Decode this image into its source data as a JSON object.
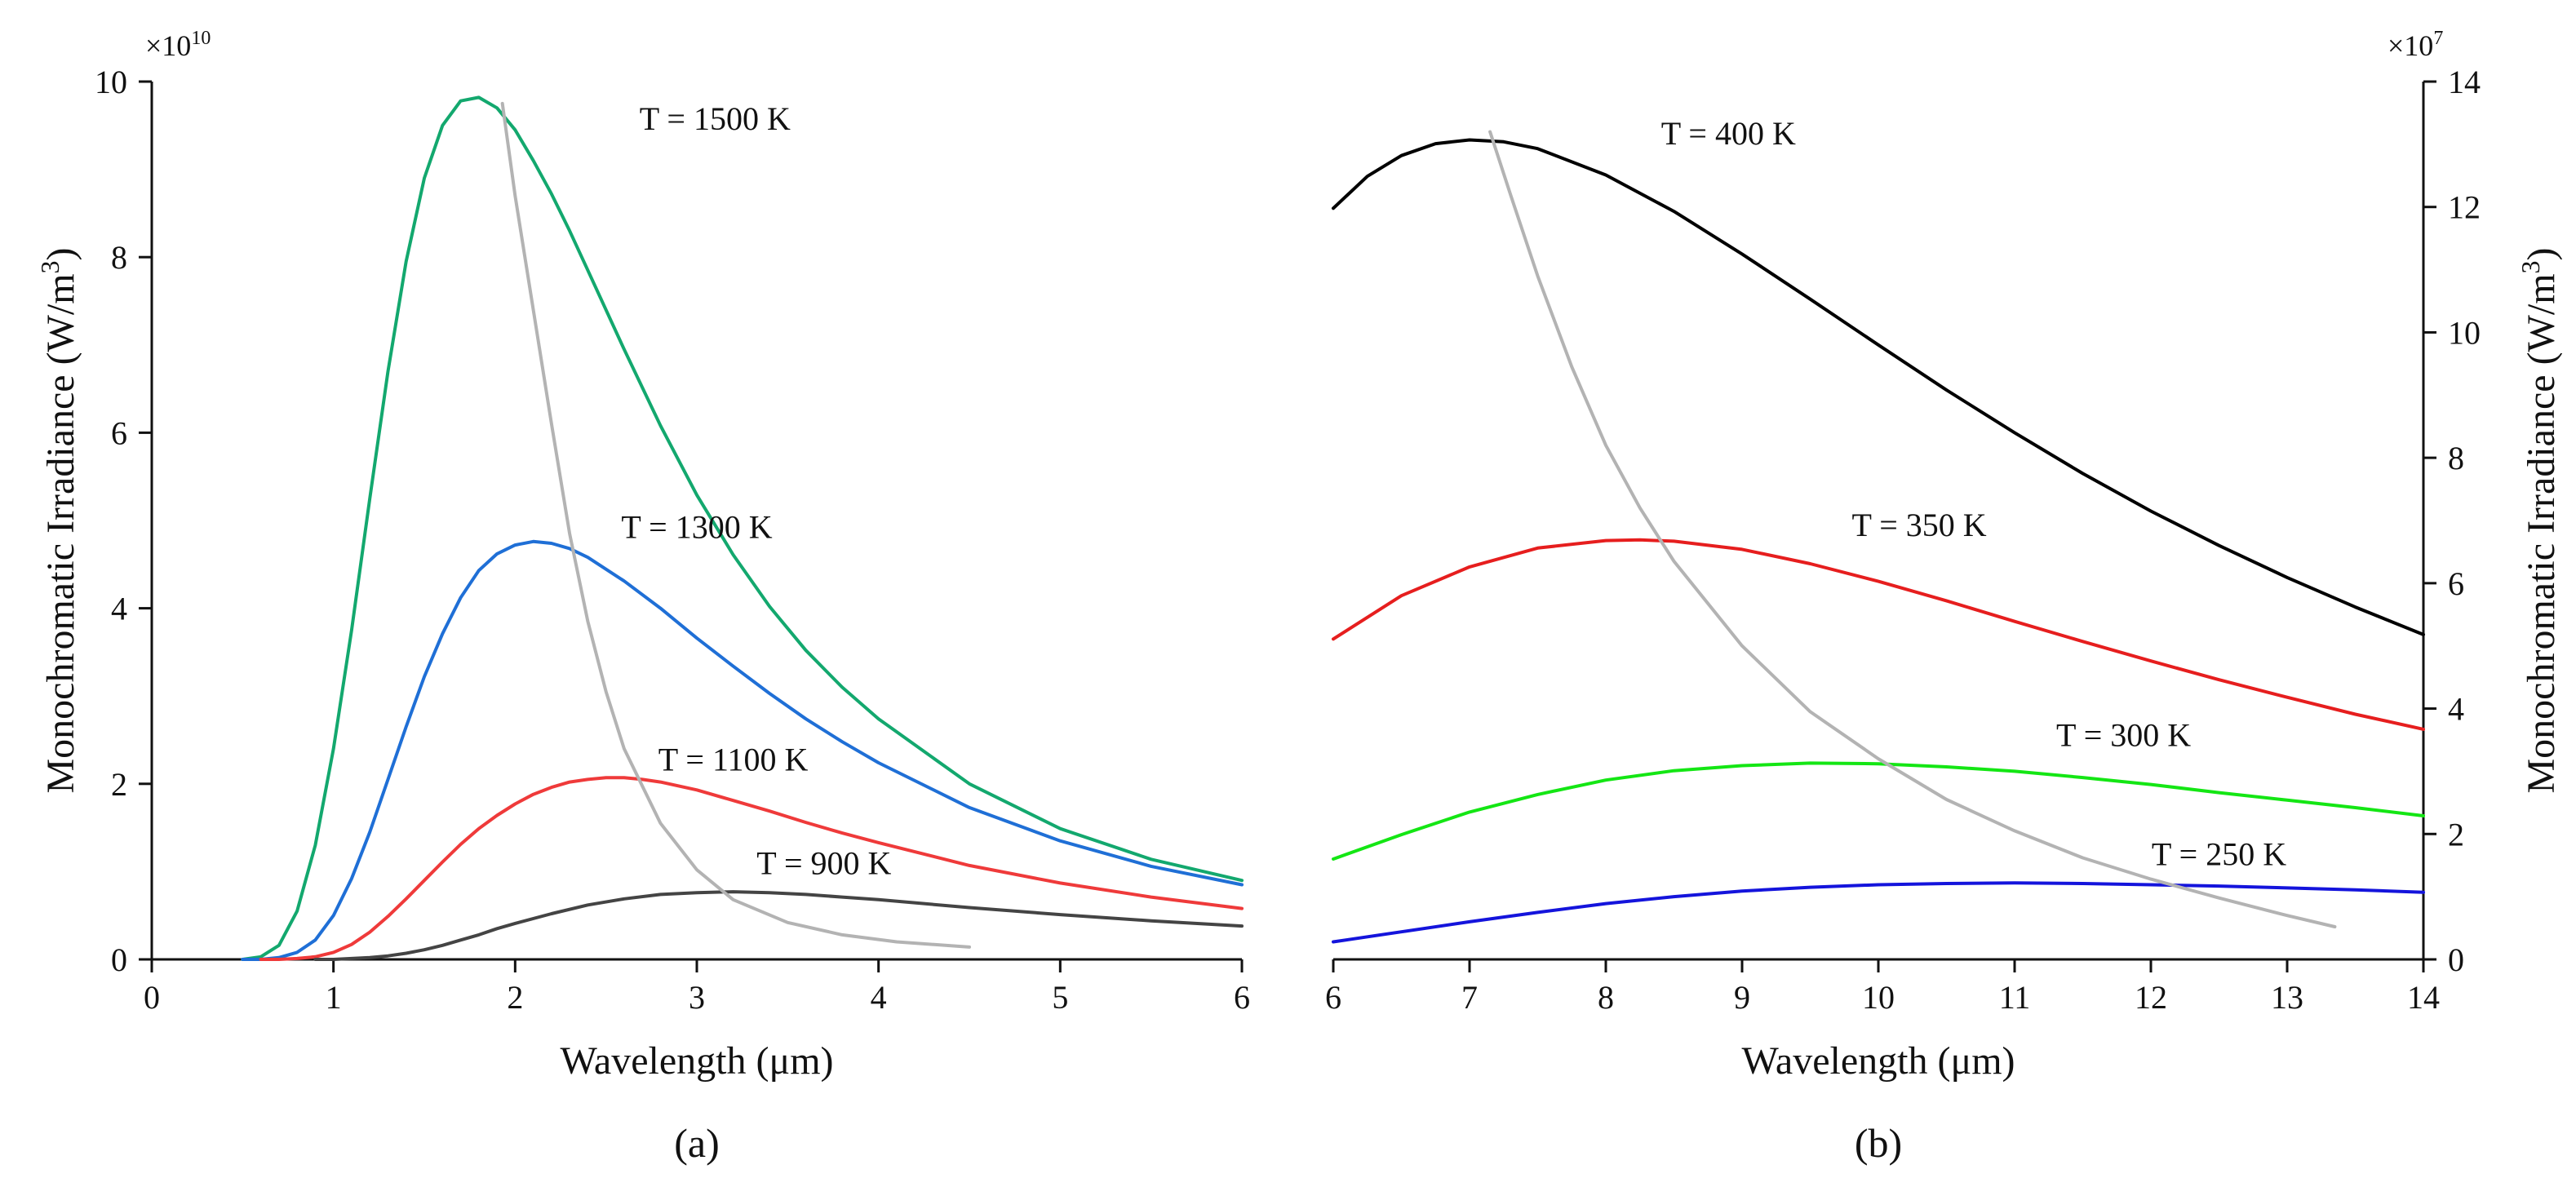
{
  "chart_data": [
    {
      "type": "line",
      "panel_label": "(a)",
      "xlabel": "Wavelength (μm)",
      "ylabel": "Monochromatic Irradiance (W/m",
      "ylabel_sup": "3",
      "ylabel_end": ")",
      "y_multiplier": "×10",
      "y_multiplier_exp": "10",
      "y_axis_side": "left",
      "xlim": [
        0,
        6
      ],
      "ylim": [
        0,
        10
      ],
      "x_ticks": [
        0,
        1,
        2,
        3,
        4,
        5,
        6
      ],
      "y_ticks": [
        0,
        2,
        4,
        6,
        8,
        10
      ],
      "grid": false,
      "series": [
        {
          "label": "T = 1500 K",
          "color": "#13a86e",
          "x": [
            0.5,
            0.6,
            0.7,
            0.8,
            0.9,
            1.0,
            1.1,
            1.2,
            1.3,
            1.4,
            1.5,
            1.6,
            1.7,
            1.8,
            1.9,
            2.0,
            2.1,
            2.2,
            2.3,
            2.4,
            2.6,
            2.8,
            3.0,
            3.2,
            3.4,
            3.6,
            3.8,
            4.0,
            4.5,
            5.0,
            5.5,
            6.0
          ],
          "y": [
            0.0,
            0.03,
            0.16,
            0.55,
            1.3,
            2.4,
            3.75,
            5.25,
            6.7,
            7.95,
            8.9,
            9.5,
            9.78,
            9.82,
            9.7,
            9.45,
            9.1,
            8.72,
            8.3,
            7.85,
            6.95,
            6.08,
            5.29,
            4.61,
            4.02,
            3.52,
            3.1,
            2.74,
            2.0,
            1.49,
            1.14,
            0.9
          ],
          "label_at": [
            3.1,
            9.45
          ]
        },
        {
          "label": "T = 1300 K",
          "color": "#1f6fd6",
          "x": [
            0.5,
            0.6,
            0.7,
            0.8,
            0.9,
            1.0,
            1.1,
            1.2,
            1.3,
            1.4,
            1.5,
            1.6,
            1.7,
            1.8,
            1.9,
            2.0,
            2.1,
            2.2,
            2.3,
            2.4,
            2.6,
            2.8,
            3.0,
            3.2,
            3.4,
            3.6,
            3.8,
            4.0,
            4.5,
            5.0,
            5.5,
            6.0
          ],
          "y": [
            0.0,
            0.0,
            0.02,
            0.08,
            0.22,
            0.5,
            0.92,
            1.45,
            2.05,
            2.65,
            3.22,
            3.71,
            4.12,
            4.43,
            4.62,
            4.72,
            4.76,
            4.74,
            4.68,
            4.58,
            4.31,
            4.0,
            3.66,
            3.34,
            3.03,
            2.74,
            2.48,
            2.24,
            1.73,
            1.35,
            1.06,
            0.85
          ],
          "label_at": [
            3.0,
            4.8
          ]
        },
        {
          "label": "T = 1100 K",
          "color": "#ef3a3a",
          "x": [
            0.6,
            0.7,
            0.8,
            0.9,
            1.0,
            1.1,
            1.2,
            1.3,
            1.4,
            1.5,
            1.6,
            1.7,
            1.8,
            1.9,
            2.0,
            2.1,
            2.2,
            2.3,
            2.4,
            2.5,
            2.6,
            2.7,
            2.8,
            3.0,
            3.2,
            3.4,
            3.6,
            3.8,
            4.0,
            4.5,
            5.0,
            5.5,
            6.0
          ],
          "y": [
            0.0,
            0.0,
            0.01,
            0.03,
            0.08,
            0.17,
            0.31,
            0.49,
            0.69,
            0.9,
            1.11,
            1.31,
            1.49,
            1.64,
            1.77,
            1.88,
            1.96,
            2.02,
            2.05,
            2.07,
            2.07,
            2.05,
            2.02,
            1.93,
            1.81,
            1.69,
            1.56,
            1.44,
            1.33,
            1.07,
            0.87,
            0.71,
            0.58
          ],
          "label_at": [
            3.2,
            2.15
          ]
        },
        {
          "label": "T = 900 K",
          "color": "#444444",
          "x": [
            0.9,
            1.0,
            1.1,
            1.2,
            1.3,
            1.4,
            1.5,
            1.6,
            1.7,
            1.8,
            1.9,
            2.0,
            2.2,
            2.4,
            2.6,
            2.8,
            3.0,
            3.2,
            3.4,
            3.6,
            3.8,
            4.0,
            4.5,
            5.0,
            5.5,
            6.0
          ],
          "y": [
            0.0,
            0.0,
            0.01,
            0.02,
            0.04,
            0.07,
            0.11,
            0.16,
            0.22,
            0.28,
            0.35,
            0.41,
            0.52,
            0.62,
            0.69,
            0.74,
            0.76,
            0.77,
            0.76,
            0.74,
            0.71,
            0.68,
            0.59,
            0.51,
            0.44,
            0.38
          ],
          "label_at": [
            3.7,
            0.97
          ]
        },
        {
          "label": "",
          "color": "#b3b3b3",
          "x": [
            1.93,
            2.0,
            2.1,
            2.2,
            2.3,
            2.4,
            2.5,
            2.6,
            2.8,
            3.0,
            3.2,
            3.5,
            3.8,
            4.1,
            4.5
          ],
          "y": [
            9.75,
            8.7,
            7.4,
            6.1,
            4.85,
            3.85,
            3.05,
            2.4,
            1.55,
            1.02,
            0.68,
            0.42,
            0.28,
            0.2,
            0.14
          ]
        }
      ]
    },
    {
      "type": "line",
      "panel_label": "(b)",
      "xlabel": "Wavelength (μm)",
      "ylabel": "Monochromatic Irradiance (W/m",
      "ylabel_sup": "3",
      "ylabel_end": ")",
      "y_multiplier": "×10",
      "y_multiplier_exp": "7",
      "y_axis_side": "right",
      "xlim": [
        6,
        14
      ],
      "ylim": [
        0,
        14
      ],
      "x_ticks": [
        6,
        7,
        8,
        9,
        10,
        11,
        12,
        13,
        14
      ],
      "y_ticks": [
        0,
        2,
        4,
        6,
        8,
        10,
        12,
        14
      ],
      "grid": false,
      "series": [
        {
          "label": "T = 400 K",
          "color": "#000000",
          "x": [
            6.0,
            6.25,
            6.5,
            6.75,
            7.0,
            7.25,
            7.5,
            8.0,
            8.5,
            9.0,
            9.5,
            10.0,
            10.5,
            11.0,
            11.5,
            12.0,
            12.5,
            13.0,
            13.5,
            14.0
          ],
          "y": [
            11.98,
            12.49,
            12.82,
            13.01,
            13.07,
            13.04,
            12.93,
            12.51,
            11.93,
            11.25,
            10.53,
            9.8,
            9.08,
            8.4,
            7.75,
            7.15,
            6.6,
            6.09,
            5.62,
            5.18
          ],
          "label_at": [
            8.9,
            13.0
          ]
        },
        {
          "label": "T = 350 K",
          "color": "#e61e1e",
          "x": [
            6.0,
            6.5,
            7.0,
            7.5,
            8.0,
            8.25,
            8.5,
            9.0,
            9.5,
            10.0,
            10.5,
            11.0,
            11.5,
            12.0,
            12.5,
            13.0,
            13.5,
            14.0
          ],
          "y": [
            5.11,
            5.8,
            6.26,
            6.56,
            6.68,
            6.69,
            6.67,
            6.54,
            6.31,
            6.03,
            5.72,
            5.39,
            5.07,
            4.76,
            4.46,
            4.18,
            3.91,
            3.67
          ],
          "label_at": [
            10.3,
            6.75
          ]
        },
        {
          "label": "T = 300 K",
          "color": "#14e614",
          "x": [
            6.0,
            6.5,
            7.0,
            7.5,
            8.0,
            8.5,
            9.0,
            9.5,
            10.0,
            10.5,
            11.0,
            11.5,
            12.0,
            12.5,
            13.0,
            13.5,
            14.0
          ],
          "y": [
            1.6,
            1.99,
            2.35,
            2.63,
            2.86,
            3.01,
            3.09,
            3.13,
            3.12,
            3.07,
            3.0,
            2.9,
            2.79,
            2.66,
            2.54,
            2.42,
            2.29
          ],
          "label_at": [
            11.8,
            3.4
          ]
        },
        {
          "label": "T = 250 K",
          "color": "#1414dc",
          "x": [
            6.0,
            6.5,
            7.0,
            7.5,
            8.0,
            8.5,
            9.0,
            9.5,
            10.0,
            10.5,
            11.0,
            11.5,
            12.0,
            12.5,
            13.0,
            13.5,
            14.0
          ],
          "y": [
            0.28,
            0.44,
            0.6,
            0.75,
            0.89,
            1.0,
            1.09,
            1.15,
            1.19,
            1.21,
            1.22,
            1.21,
            1.19,
            1.17,
            1.14,
            1.11,
            1.07
          ],
          "label_at": [
            12.5,
            1.5
          ]
        },
        {
          "label": "",
          "color": "#b3b3b3",
          "x": [
            7.15,
            7.3,
            7.5,
            7.75,
            8.0,
            8.25,
            8.5,
            9.0,
            9.5,
            10.0,
            10.5,
            11.0,
            11.5,
            12.0,
            12.5,
            13.0,
            13.35
          ],
          "y": [
            13.2,
            12.2,
            10.9,
            9.45,
            8.2,
            7.2,
            6.35,
            5.0,
            3.95,
            3.2,
            2.55,
            2.05,
            1.62,
            1.28,
            0.98,
            0.7,
            0.52
          ]
        }
      ]
    }
  ]
}
